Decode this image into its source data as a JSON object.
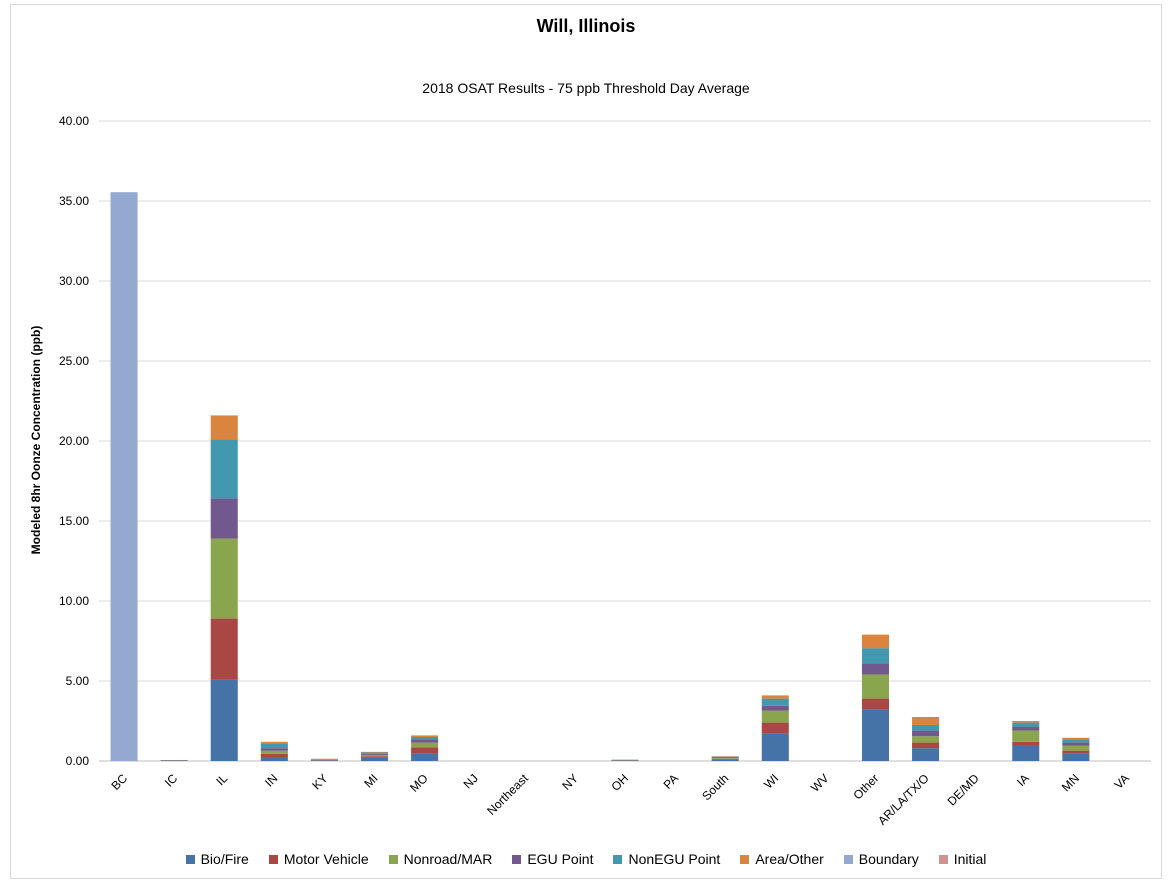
{
  "chart_data": {
    "type": "bar",
    "stacked": true,
    "title": "Will, Illinois",
    "subtitle": "2018 OSAT Results - 75 ppb Threshold Day Average",
    "xlabel": "",
    "ylabel": "Modeled 8hr Oonze Concentration (ppb)",
    "ylim": [
      0,
      40
    ],
    "yticks": [
      "0.00",
      "5.00",
      "10.00",
      "15.00",
      "20.00",
      "25.00",
      "30.00",
      "35.00",
      "40.00"
    ],
    "grid": true,
    "legend_position": "bottom",
    "categories": [
      "BC",
      "IC",
      "IL",
      "IN",
      "KY",
      "MI",
      "MO",
      "NJ",
      "Northeast",
      "NY",
      "OH",
      "PA",
      "South",
      "WI",
      "WV",
      "Other",
      "AR/LA/TX/O",
      "DE/MD",
      "IA",
      "MN",
      "VA"
    ],
    "series": [
      {
        "name": "Bio/Fire",
        "color": "#4572A7",
        "values": [
          0,
          0.03,
          5.1,
          0.25,
          0.04,
          0.2,
          0.45,
          0,
          0,
          0,
          0.03,
          0,
          0.08,
          1.7,
          0,
          3.2,
          0.8,
          0,
          1.0,
          0.45,
          0
        ]
      },
      {
        "name": "Motor Vehicle",
        "color": "#AA4643",
        "values": [
          0,
          0.02,
          3.8,
          0.2,
          0.02,
          0.1,
          0.4,
          0,
          0,
          0,
          0.02,
          0,
          0.05,
          0.7,
          0,
          0.7,
          0.35,
          0,
          0.2,
          0.2,
          0
        ]
      },
      {
        "name": "Nonroad/MAR",
        "color": "#89A54E",
        "values": [
          0,
          0.01,
          5.0,
          0.2,
          0.02,
          0.08,
          0.3,
          0,
          0,
          0,
          0.01,
          0,
          0.05,
          0.75,
          0,
          1.5,
          0.4,
          0,
          0.7,
          0.3,
          0
        ]
      },
      {
        "name": "EGU Point",
        "color": "#71588F",
        "values": [
          0,
          0.0,
          2.5,
          0.15,
          0.02,
          0.07,
          0.2,
          0,
          0,
          0,
          0.01,
          0,
          0.04,
          0.3,
          0,
          0.7,
          0.35,
          0,
          0.25,
          0.2,
          0
        ]
      },
      {
        "name": "NonEGU Point",
        "color": "#4198AF",
        "values": [
          0,
          0.0,
          3.7,
          0.3,
          0.02,
          0.08,
          0.15,
          0,
          0,
          0,
          0.01,
          0,
          0.05,
          0.45,
          0,
          0.95,
          0.35,
          0,
          0.25,
          0.2,
          0
        ]
      },
      {
        "name": "Area/Other",
        "color": "#DB843D",
        "values": [
          0,
          0.0,
          1.5,
          0.1,
          0.02,
          0.04,
          0.1,
          0,
          0,
          0,
          0.01,
          0,
          0.03,
          0.2,
          0,
          0.85,
          0.5,
          0,
          0.1,
          0.1,
          0
        ]
      },
      {
        "name": "Boundary",
        "color": "#93A9CF",
        "values": [
          35.55,
          0,
          0,
          0,
          0,
          0,
          0,
          0,
          0,
          0,
          0,
          0,
          0,
          0,
          0,
          0,
          0,
          0,
          0,
          0,
          0
        ]
      },
      {
        "name": "Initial",
        "color": "#D19392",
        "values": [
          0,
          0,
          0,
          0,
          0,
          0,
          0,
          0,
          0,
          0,
          0,
          0,
          0,
          0,
          0,
          0,
          0,
          0,
          0,
          0,
          0
        ]
      }
    ]
  }
}
